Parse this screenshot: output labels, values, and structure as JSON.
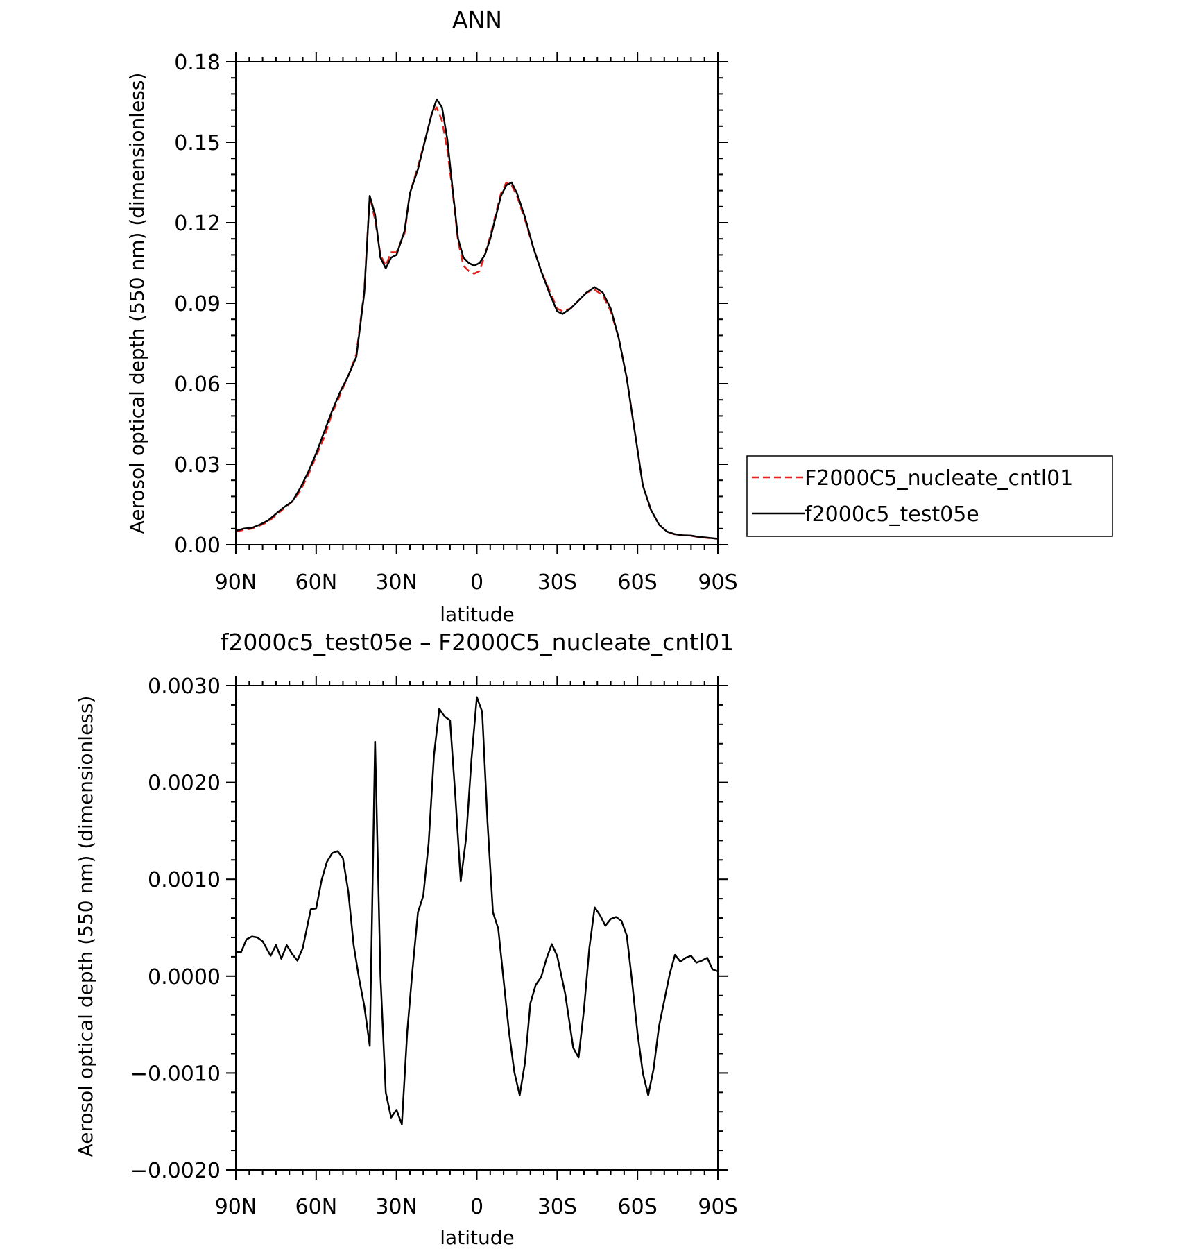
{
  "chart_data": [
    {
      "type": "line",
      "title": "ANN",
      "xlabel": "latitude",
      "ylabel": "Aerosol optical depth (550 nm) (dimensionless)",
      "xlim": [
        90,
        -90
      ],
      "ylim": [
        0,
        0.18
      ],
      "xticks": [
        90,
        60,
        30,
        0,
        -30,
        -60,
        -90
      ],
      "xtick_labels": [
        "90N",
        "60N",
        "30N",
        "0",
        "30S",
        "60S",
        "90S"
      ],
      "yticks": [
        0,
        0.03,
        0.06,
        0.09,
        0.12,
        0.15,
        0.18
      ],
      "ytick_labels": [
        "0.00",
        "0.03",
        "0.06",
        "0.09",
        "0.12",
        "0.15",
        "0.18"
      ],
      "grid": false,
      "legend": {
        "placement": "right",
        "entries": [
          {
            "label": "F2000C5_nucleate_cntl01",
            "color": "#e8201c",
            "dash": "dashed"
          },
          {
            "label": "f2000c5_test05e",
            "color": "#000000",
            "dash": "solid"
          }
        ]
      },
      "series": [
        {
          "name": "F2000C5_nucleate_cntl01",
          "color": "#e8201c",
          "dash": "dashed",
          "points": [
            [
              90,
              0.005
            ],
            [
              87,
              0.0055
            ],
            [
              84,
              0.006
            ],
            [
              81,
              0.0072
            ],
            [
              78,
              0.0085
            ],
            [
              75,
              0.011
            ],
            [
              72,
              0.0135
            ],
            [
              69,
              0.016
            ],
            [
              66,
              0.02
            ],
            [
              63,
              0.026
            ],
            [
              60,
              0.033
            ],
            [
              57,
              0.04
            ],
            [
              54,
              0.049
            ],
            [
              51,
              0.056
            ],
            [
              48,
              0.063
            ],
            [
              45,
              0.071
            ],
            [
              42,
              0.095
            ],
            [
              40,
              0.13
            ],
            [
              38,
              0.121
            ],
            [
              36,
              0.108
            ],
            [
              34,
              0.104
            ],
            [
              32,
              0.109
            ],
            [
              30,
              0.109
            ],
            [
              27,
              0.116
            ],
            [
              25,
              0.131
            ],
            [
              22,
              0.141
            ],
            [
              19,
              0.152
            ],
            [
              17,
              0.16
            ],
            [
              15,
              0.163
            ],
            [
              13,
              0.158
            ],
            [
              11,
              0.147
            ],
            [
              9,
              0.131
            ],
            [
              7,
              0.113
            ],
            [
              5,
              0.104
            ],
            [
              3,
              0.102
            ],
            [
              1,
              0.101
            ],
            [
              -1,
              0.102
            ],
            [
              -3,
              0.108
            ],
            [
              -5,
              0.115
            ],
            [
              -7,
              0.123
            ],
            [
              -9,
              0.131
            ],
            [
              -11,
              0.135
            ],
            [
              -13,
              0.134
            ],
            [
              -15,
              0.13
            ],
            [
              -18,
              0.121
            ],
            [
              -21,
              0.111
            ],
            [
              -24,
              0.102
            ],
            [
              -27,
              0.095
            ],
            [
              -30,
              0.088
            ],
            [
              -32,
              0.087
            ],
            [
              -35,
              0.088
            ],
            [
              -38,
              0.091
            ],
            [
              -41,
              0.094
            ],
            [
              -44,
              0.095
            ],
            [
              -47,
              0.093
            ],
            [
              -50,
              0.087
            ],
            [
              -53,
              0.077
            ],
            [
              -56,
              0.062
            ],
            [
              -59,
              0.042
            ],
            [
              -62,
              0.022
            ],
            [
              -65,
              0.013
            ],
            [
              -68,
              0.0075
            ],
            [
              -71,
              0.0048
            ],
            [
              -74,
              0.0038
            ],
            [
              -77,
              0.0035
            ],
            [
              -80,
              0.0033
            ],
            [
              -83,
              0.0028
            ],
            [
              -86,
              0.0025
            ],
            [
              -90,
              0.0022
            ]
          ]
        },
        {
          "name": "f2000c5_test05e",
          "color": "#000000",
          "dash": "solid",
          "points": [
            [
              90,
              0.0052
            ],
            [
              87,
              0.006
            ],
            [
              84,
              0.0063
            ],
            [
              81,
              0.0075
            ],
            [
              78,
              0.009
            ],
            [
              75,
              0.0115
            ],
            [
              72,
              0.014
            ],
            [
              69,
              0.016
            ],
            [
              66,
              0.021
            ],
            [
              63,
              0.027
            ],
            [
              60,
              0.034
            ],
            [
              57,
              0.042
            ],
            [
              54,
              0.05
            ],
            [
              51,
              0.057
            ],
            [
              48,
              0.063
            ],
            [
              45,
              0.07
            ],
            [
              42,
              0.094
            ],
            [
              40,
              0.13
            ],
            [
              38,
              0.123
            ],
            [
              36,
              0.107
            ],
            [
              34,
              0.103
            ],
            [
              32,
              0.107
            ],
            [
              30,
              0.108
            ],
            [
              27,
              0.117
            ],
            [
              25,
              0.131
            ],
            [
              22,
              0.14
            ],
            [
              19,
              0.152
            ],
            [
              17,
              0.16
            ],
            [
              15,
              0.166
            ],
            [
              13,
              0.163
            ],
            [
              11,
              0.151
            ],
            [
              9,
              0.132
            ],
            [
              7,
              0.114
            ],
            [
              5,
              0.107
            ],
            [
              3,
              0.105
            ],
            [
              1,
              0.104
            ],
            [
              -1,
              0.105
            ],
            [
              -3,
              0.108
            ],
            [
              -5,
              0.114
            ],
            [
              -7,
              0.122
            ],
            [
              -9,
              0.13
            ],
            [
              -11,
              0.134
            ],
            [
              -13,
              0.135
            ],
            [
              -15,
              0.131
            ],
            [
              -18,
              0.122
            ],
            [
              -21,
              0.111
            ],
            [
              -24,
              0.102
            ],
            [
              -27,
              0.094
            ],
            [
              -30,
              0.087
            ],
            [
              -32,
              0.086
            ],
            [
              -35,
              0.088
            ],
            [
              -38,
              0.091
            ],
            [
              -41,
              0.094
            ],
            [
              -44,
              0.096
            ],
            [
              -47,
              0.094
            ],
            [
              -50,
              0.088
            ],
            [
              -53,
              0.077
            ],
            [
              -56,
              0.062
            ],
            [
              -59,
              0.042
            ],
            [
              -62,
              0.022
            ],
            [
              -65,
              0.013
            ],
            [
              -68,
              0.0075
            ],
            [
              -71,
              0.0049
            ],
            [
              -74,
              0.0039
            ],
            [
              -77,
              0.0035
            ],
            [
              -80,
              0.0034
            ],
            [
              -83,
              0.0029
            ],
            [
              -86,
              0.0026
            ],
            [
              -90,
              0.0022
            ]
          ]
        }
      ]
    },
    {
      "type": "line",
      "title": "f2000c5_test05e – F2000C5_nucleate_cntl01",
      "xlabel": "latitude",
      "ylabel": "Aerosol optical depth (550 nm) (dimensionless)",
      "xlim": [
        90,
        -90
      ],
      "ylim": [
        -0.002,
        0.003
      ],
      "xticks": [
        90,
        60,
        30,
        0,
        -30,
        -60,
        -90
      ],
      "xtick_labels": [
        "90N",
        "60N",
        "30N",
        "0",
        "30S",
        "60S",
        "90S"
      ],
      "yticks": [
        -0.002,
        -0.001,
        0,
        0.001,
        0.002,
        0.003
      ],
      "ytick_labels": [
        "−0.0020",
        "−0.0010",
        "0.0000",
        "0.0010",
        "0.0020",
        "0.0030"
      ],
      "grid": false,
      "series": [
        {
          "color": "#000000",
          "dash": "solid",
          "points": [
            [
              90,
              0.00025
            ],
            [
              88,
              0.00025
            ],
            [
              86,
              0.00038
            ],
            [
              84,
              0.00041
            ],
            [
              82,
              0.0004
            ],
            [
              80,
              0.00036
            ],
            [
              77,
              0.00021
            ],
            [
              75,
              0.00032
            ],
            [
              73,
              0.00018
            ],
            [
              71,
              0.00032
            ],
            [
              69,
              0.00023
            ],
            [
              67,
              0.00016
            ],
            [
              65,
              0.00029
            ],
            [
              62,
              0.00069
            ],
            [
              60,
              0.0007
            ],
            [
              58,
              0.00099
            ],
            [
              56,
              0.00118
            ],
            [
              54,
              0.00127
            ],
            [
              52,
              0.00129
            ],
            [
              50,
              0.00122
            ],
            [
              48,
              0.00087
            ],
            [
              46,
              0.00032
            ],
            [
              44,
              -2e-05
            ],
            [
              42,
              -0.00031
            ],
            [
              40,
              -0.00072
            ],
            [
              38,
              0.00242
            ],
            [
              36,
              1e-05
            ],
            [
              34,
              -0.0012
            ],
            [
              32,
              -0.00146
            ],
            [
              30,
              -0.00138
            ],
            [
              28,
              -0.00153
            ],
            [
              26,
              -0.00058
            ],
            [
              24,
              7e-05
            ],
            [
              22,
              0.00066
            ],
            [
              20,
              0.00083
            ],
            [
              18,
              0.00137
            ],
            [
              16,
              0.00228
            ],
            [
              14,
              0.00276
            ],
            [
              12,
              0.00268
            ],
            [
              10,
              0.00264
            ],
            [
              8,
              0.00185
            ],
            [
              6,
              0.00098
            ],
            [
              4,
              0.00143
            ],
            [
              2,
              0.00224
            ],
            [
              0,
              0.00288
            ],
            [
              -2,
              0.00273
            ],
            [
              -4,
              0.00159
            ],
            [
              -6,
              0.00066
            ],
            [
              -8,
              0.00049
            ],
            [
              -10,
              -4e-05
            ],
            [
              -12,
              -0.00057
            ],
            [
              -14,
              -0.00099
            ],
            [
              -16,
              -0.00123
            ],
            [
              -18,
              -0.00089
            ],
            [
              -20,
              -0.00028
            ],
            [
              -22,
              -9e-05
            ],
            [
              -24,
              -1e-05
            ],
            [
              -26,
              0.00018
            ],
            [
              -28,
              0.00033
            ],
            [
              -30,
              0.00021
            ],
            [
              -33,
              -0.00018
            ],
            [
              -36,
              -0.00074
            ],
            [
              -38,
              -0.00084
            ],
            [
              -40,
              -0.00035
            ],
            [
              -42,
              0.00029
            ],
            [
              -44,
              0.00071
            ],
            [
              -46,
              0.00063
            ],
            [
              -48,
              0.00052
            ],
            [
              -50,
              0.00059
            ],
            [
              -52,
              0.00061
            ],
            [
              -54,
              0.00057
            ],
            [
              -56,
              0.00042
            ],
            [
              -58,
              -6e-05
            ],
            [
              -60,
              -0.00059
            ],
            [
              -62,
              -0.001
            ],
            [
              -64,
              -0.00123
            ],
            [
              -66,
              -0.00096
            ],
            [
              -68,
              -0.00052
            ],
            [
              -70,
              -0.00025
            ],
            [
              -72,
              2e-05
            ],
            [
              -74,
              0.00022
            ],
            [
              -76,
              0.00015
            ],
            [
              -78,
              0.00019
            ],
            [
              -80,
              0.00021
            ],
            [
              -82,
              0.00014
            ],
            [
              -84,
              0.00016
            ],
            [
              -86,
              0.00019
            ],
            [
              -88,
              7e-05
            ],
            [
              -90,
              5e-05
            ],
            [
              -92,
              5e-05
            ],
            [
              -94,
              1e-05
            ],
            [
              -96,
              1e-05
            ]
          ]
        }
      ]
    }
  ]
}
